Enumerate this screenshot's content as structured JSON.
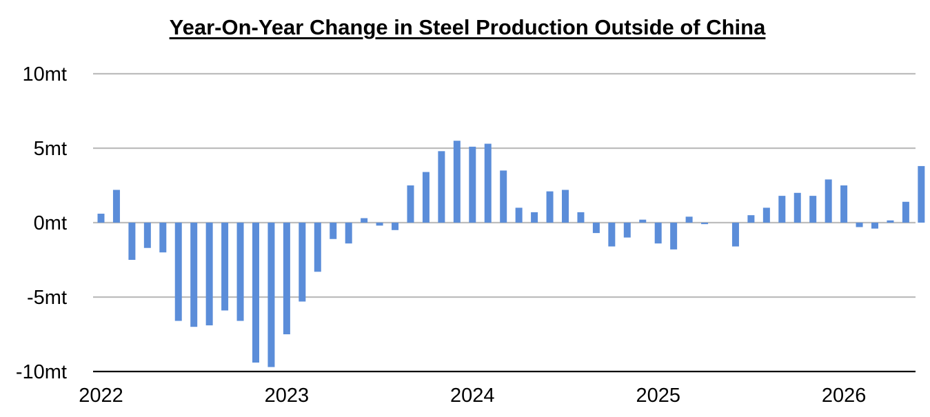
{
  "chart_data": {
    "type": "bar",
    "title": "Year-On-Year Change in Steel Production Outside of China",
    "xlabel": "",
    "ylabel": "",
    "ylim": [
      -10,
      10
    ],
    "grid": true,
    "legend": "none",
    "color": "#5B8DD9",
    "y_ticks": [
      {
        "value": 10,
        "label": "10mt"
      },
      {
        "value": 5,
        "label": "5mt"
      },
      {
        "value": 0,
        "label": "0mt"
      },
      {
        "value": -5,
        "label": "-5mt"
      },
      {
        "value": -10,
        "label": "-10mt"
      }
    ],
    "x_ticks": [
      {
        "index": 0,
        "label": "2022"
      },
      {
        "index": 12,
        "label": "2023"
      },
      {
        "index": 24,
        "label": "2024"
      },
      {
        "index": 36,
        "label": "2025"
      },
      {
        "index": 48,
        "label": "2026"
      }
    ],
    "values": [
      0.6,
      2.2,
      -2.5,
      -1.7,
      -2.0,
      -6.6,
      -7.0,
      -6.9,
      -5.9,
      -6.6,
      -9.4,
      -9.7,
      -7.5,
      -5.3,
      -3.3,
      -1.1,
      -1.4,
      0.3,
      -0.2,
      -0.5,
      2.5,
      3.4,
      4.8,
      5.5,
      5.1,
      5.3,
      3.5,
      1.0,
      0.7,
      2.1,
      2.2,
      0.7,
      -0.7,
      -1.6,
      -1.0,
      0.2,
      -1.4,
      -1.8,
      0.4,
      -0.1,
      0.0,
      -1.6,
      0.5,
      1.0,
      1.8,
      2.0,
      1.8,
      2.9,
      2.5,
      -0.3,
      -0.4,
      0.15,
      1.4,
      3.8
    ]
  }
}
